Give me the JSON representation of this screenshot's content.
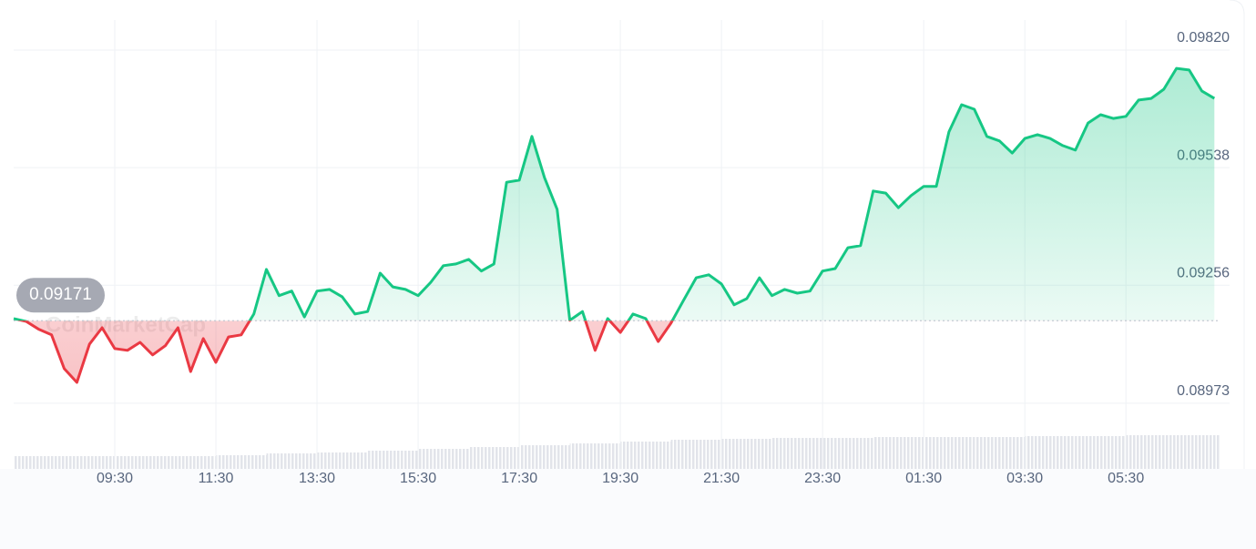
{
  "chart_data": {
    "type": "line",
    "watermark": "CoinMarketCap",
    "x": [
      7.5,
      7.75,
      8,
      8.25,
      8.5,
      8.75,
      9,
      9.25,
      9.5,
      9.75,
      10,
      10.25,
      10.5,
      10.75,
      11,
      11.25,
      11.5,
      11.75,
      12,
      12.25,
      12.5,
      12.75,
      13,
      13.25,
      13.5,
      13.75,
      14,
      14.25,
      14.5,
      14.75,
      15,
      15.25,
      15.5,
      15.75,
      16,
      16.25,
      16.5,
      16.75,
      17,
      17.25,
      17.5,
      17.75,
      18,
      18.25,
      18.5,
      18.75,
      19,
      19.25,
      19.5,
      19.75,
      20,
      20.25,
      20.5,
      20.75,
      21,
      21.25,
      21.5,
      21.75,
      22,
      22.25,
      22.5,
      22.75,
      23,
      23.25,
      23.5,
      23.75,
      24,
      24.25,
      24.5,
      24.75,
      25,
      25.25,
      25.5,
      25.75,
      26,
      26.25,
      26.5,
      26.75,
      27,
      27.25,
      27.5,
      27.75,
      28,
      28.25,
      28.5,
      28.75,
      29,
      29.25,
      29.5,
      29.75,
      30,
      30.25,
      30.5,
      30.75,
      31,
      31.25
    ],
    "series": [
      {
        "color": "#16c784",
        "below_color": "#ea3943",
        "values": [
          0.09176,
          0.09169,
          0.0915,
          0.09137,
          0.09056,
          0.09023,
          0.09115,
          0.09154,
          0.09104,
          0.091,
          0.09119,
          0.09089,
          0.09111,
          0.09154,
          0.09049,
          0.09128,
          0.09071,
          0.09132,
          0.09137,
          0.09187,
          0.09294,
          0.09231,
          0.09242,
          0.0918,
          0.09242,
          0.09246,
          0.09228,
          0.09187,
          0.09193,
          0.09285,
          0.09252,
          0.09246,
          0.09231,
          0.09263,
          0.09303,
          0.09307,
          0.09318,
          0.0929,
          0.09307,
          0.09503,
          0.09508,
          0.09613,
          0.09514,
          0.09438,
          0.09172,
          0.09193,
          0.091,
          0.09176,
          0.09143,
          0.09187,
          0.09176,
          0.09121,
          0.09165,
          0.0922,
          0.09274,
          0.09281,
          0.09259,
          0.09209,
          0.09224,
          0.09274,
          0.09231,
          0.09246,
          0.09237,
          0.09242,
          0.0929,
          0.09296,
          0.09346,
          0.09351,
          0.09482,
          0.09477,
          0.09442,
          0.09471,
          0.09493,
          0.09493,
          0.09624,
          0.09689,
          0.09678,
          0.09613,
          0.09602,
          0.09573,
          0.09608,
          0.09617,
          0.09608,
          0.09591,
          0.0958,
          0.09645,
          0.09665,
          0.09656,
          0.09661,
          0.097,
          0.09704,
          0.09726,
          0.09776,
          0.09772,
          0.09722,
          0.09704
        ]
      }
    ],
    "reference": 0.09171,
    "volume": {
      "color": "#e4e6ec",
      "x": [
        7.5,
        8.5,
        9.5,
        10.5,
        11.5,
        12.5,
        13.5,
        14.5,
        15.5,
        16.5,
        17.5,
        18.5,
        19.5,
        20.5,
        21.5,
        22.5,
        23.5,
        24.5,
        25.5,
        26.5,
        27.5,
        28.5,
        29.5,
        30.5
      ],
      "values": [
        14,
        14,
        14,
        14,
        15,
        17,
        18,
        20,
        22,
        24,
        26,
        28,
        30,
        32,
        33,
        34,
        34,
        35,
        35,
        35,
        36,
        36,
        37,
        37
      ],
      "vlim": [
        0,
        100
      ]
    },
    "xlim": [
      7.5,
      31.37
    ],
    "xticks": [
      {
        "value": 9.5,
        "label": "09:30"
      },
      {
        "value": 11.5,
        "label": "11:30"
      },
      {
        "value": 13.5,
        "label": "13:30"
      },
      {
        "value": 15.5,
        "label": "15:30"
      },
      {
        "value": 17.5,
        "label": "17:30"
      },
      {
        "value": 19.5,
        "label": "19:30"
      },
      {
        "value": 21.5,
        "label": "21:30"
      },
      {
        "value": 23.5,
        "label": "23:30"
      },
      {
        "value": 25.5,
        "label": "01:30"
      },
      {
        "value": 27.5,
        "label": "03:30"
      },
      {
        "value": 29.5,
        "label": "05:30"
      }
    ],
    "ylim": [
      0.0882,
      0.0994
    ],
    "yticks": [
      {
        "value": 0.0982,
        "label": "0.09820"
      },
      0.09538,
      0.09256,
      0.08973
    ],
    "grid": true
  }
}
